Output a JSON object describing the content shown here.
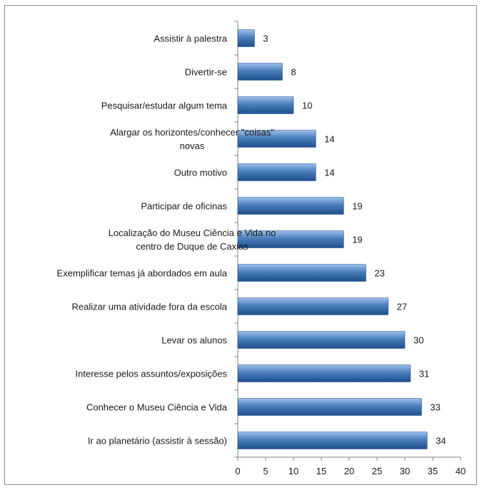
{
  "chart_data": {
    "type": "bar",
    "orientation": "horizontal",
    "categories": [
      "Assistir à palestra",
      "Divertir-se",
      "Pesquisar/estudar algum tema",
      "Alargar os horizontes/conhecer \"coisas\" novas",
      "Outro motivo",
      "Participar de oficinas",
      "Localização do Museu Ciência e Vida no centro de Duque de Caxias",
      "Exemplificar temas já abordados em aula",
      "Realizar uma atividade fora da escola",
      "Levar os alunos",
      "Interesse pelos assuntos/exposições",
      "Conhecer o Museu Ciência  e Vida",
      "Ir ao planetário (assistir à sessão)"
    ],
    "category_lines": [
      [
        "Assistir à palestra"
      ],
      [
        "Divertir-se"
      ],
      [
        "Pesquisar/estudar algum tema"
      ],
      [
        "Alargar os horizontes/conhecer \"coisas\"",
        "novas"
      ],
      [
        "Outro motivo"
      ],
      [
        "Participar de oficinas"
      ],
      [
        "Localização do Museu Ciência e Vida no",
        "centro de Duque de Caxias"
      ],
      [
        "Exemplificar temas já abordados em aula"
      ],
      [
        "Realizar uma atividade fora da escola"
      ],
      [
        "Levar os alunos"
      ],
      [
        "Interesse pelos assuntos/exposições"
      ],
      [
        "Conhecer o Museu Ciência  e Vida"
      ],
      [
        "Ir ao planetário (assistir à sessão)"
      ]
    ],
    "values": [
      3,
      8,
      10,
      14,
      14,
      19,
      19,
      23,
      27,
      30,
      31,
      33,
      34
    ],
    "xticks": [
      0,
      5,
      10,
      15,
      20,
      25,
      30,
      35,
      40
    ],
    "xlim": [
      0,
      40
    ],
    "title": "",
    "xlabel": "",
    "ylabel": "",
    "grid": false,
    "legend": "none",
    "bar_color": "#4a7ebb",
    "bar_color_dark": "#1f4e8c",
    "bar_color_light": "#9dc0ec",
    "axis_color": "#868686"
  }
}
